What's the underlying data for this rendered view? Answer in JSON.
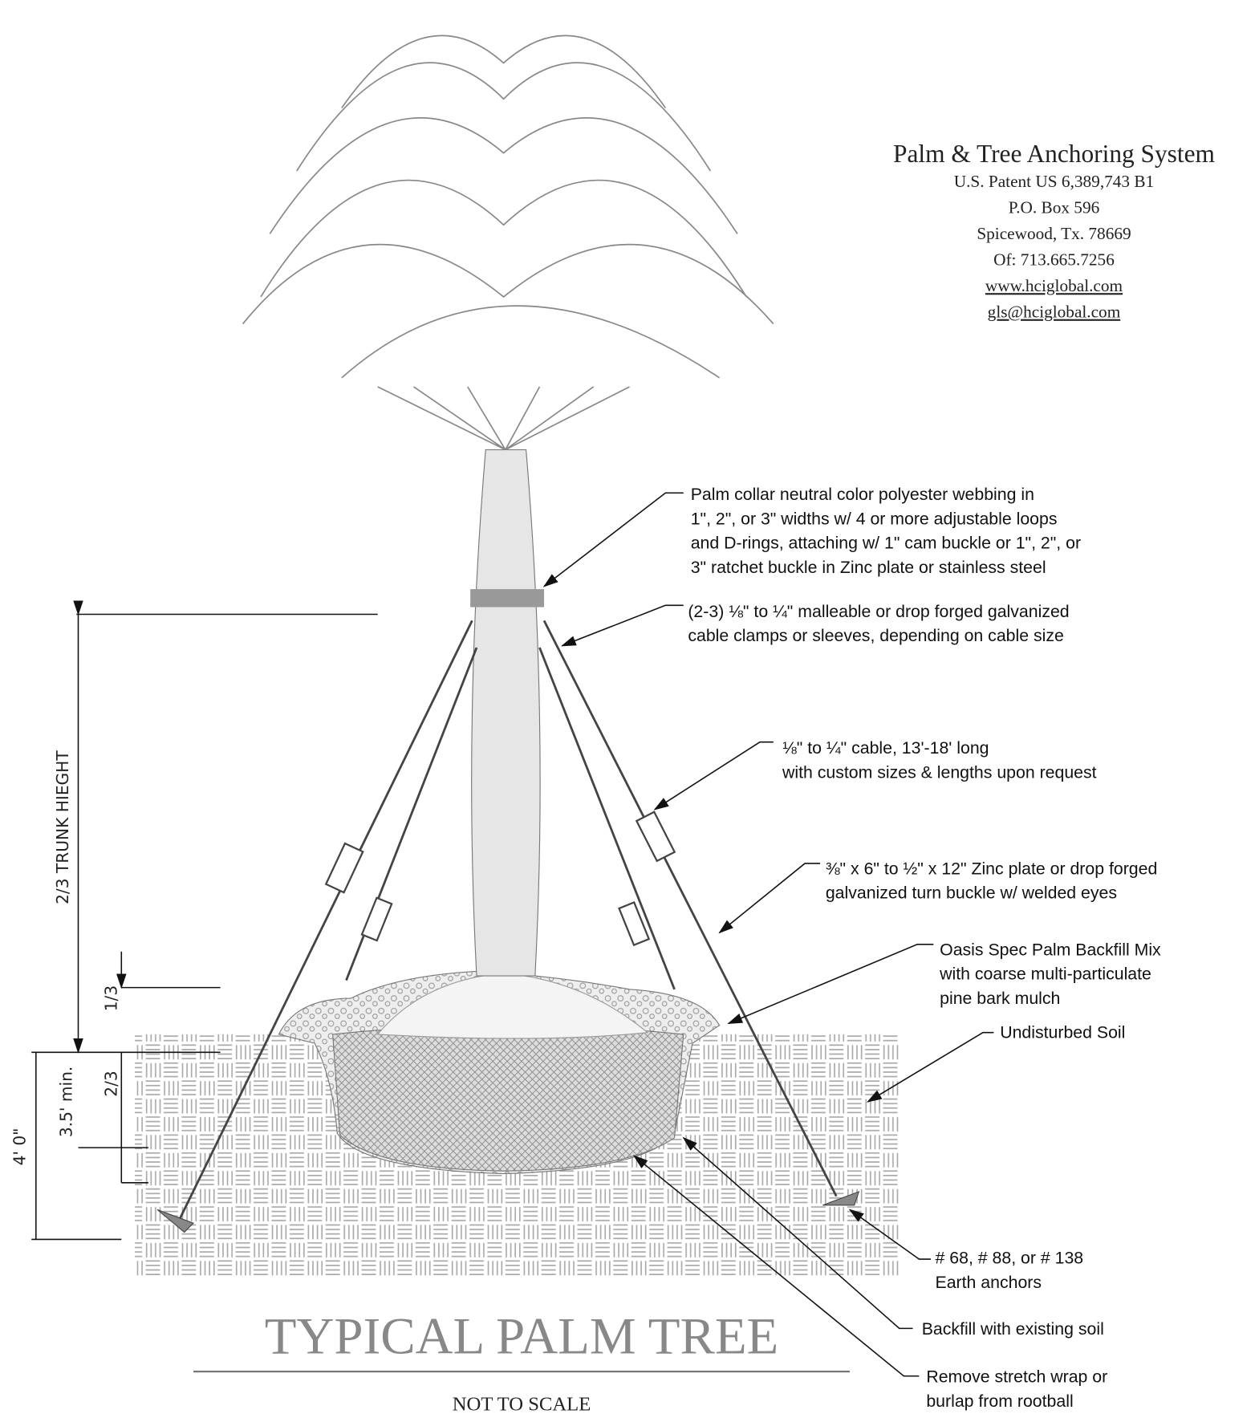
{
  "header": {
    "title": "Palm & Tree Anchoring System",
    "lines": [
      "U.S. Patent US 6,389,743 B1",
      "P.O. Box 596",
      "Spicewood, Tx. 78669",
      "Of: 713.665.7256",
      "www.hciglobal.com",
      "gls@hciglobal.com"
    ]
  },
  "callouts": [
    {
      "lines": [
        "Palm collar neutral color polyester webbing in",
        "1\", 2\", or 3\" widths w/ 4 or more adjustable loops",
        "and D-rings, attaching w/ 1\" cam buckle or 1\", 2\", or",
        "3\" ratchet buckle in Zinc plate or stainless steel"
      ]
    },
    {
      "lines": [
        "(2-3) ⅛\" to ¼\" malleable or drop forged galvanized",
        "cable clamps or sleeves, depending on cable size"
      ]
    },
    {
      "lines": [
        "⅛\" to ¼\" cable, 13'-18' long",
        "with custom sizes & lengths upon request"
      ]
    },
    {
      "lines": [
        "⅜\" x 6\" to ½\" x 12\" Zinc plate or drop forged",
        "galvanized turn buckle w/ welded eyes"
      ]
    },
    {
      "lines": [
        "Oasis Spec Palm Backfill Mix",
        "with coarse multi-particulate",
        "pine bark mulch"
      ]
    },
    {
      "lines": [
        "Undisturbed Soil"
      ]
    },
    {
      "lines": [
        "# 68, # 88, or # 138",
        "Earth anchors"
      ]
    },
    {
      "lines": [
        "Backfill with existing soil"
      ]
    },
    {
      "lines": [
        "Remove stretch wrap or",
        "burlap from rootball"
      ]
    }
  ],
  "dimensions": {
    "trunk": "2/3 TRUNK HIEGHT",
    "upper": "1/3",
    "lower": "2/3",
    "depth": "3.5' min.",
    "total": "4' 0\""
  },
  "footer": {
    "title": "TYPICAL PALM TREE",
    "subtitle": "NOT TO SCALE"
  }
}
